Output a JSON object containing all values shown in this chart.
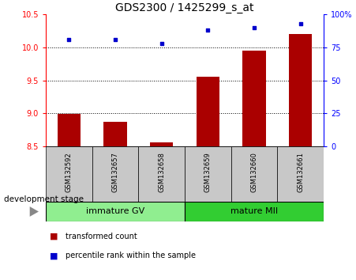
{
  "title": "GDS2300 / 1425299_s_at",
  "samples": [
    "GSM132592",
    "GSM132657",
    "GSM132658",
    "GSM132659",
    "GSM132660",
    "GSM132661"
  ],
  "bar_values": [
    8.99,
    8.87,
    8.56,
    9.55,
    9.95,
    10.2
  ],
  "bar_base": 8.5,
  "blue_dots": [
    81,
    81,
    78,
    88,
    90,
    93
  ],
  "ylim_left": [
    8.5,
    10.5
  ],
  "ylim_right": [
    0,
    100
  ],
  "yticks_left": [
    8.5,
    9.0,
    9.5,
    10.0,
    10.5
  ],
  "yticks_right": [
    0,
    25,
    50,
    75,
    100
  ],
  "ytick_labels_right": [
    "0",
    "25",
    "50",
    "75",
    "100%"
  ],
  "grid_values": [
    9.0,
    9.5,
    10.0
  ],
  "bar_color": "#AA0000",
  "dot_color": "#0000CC",
  "group1_label": "immature GV",
  "group2_label": "mature MII",
  "group1_color": "#90EE90",
  "group2_color": "#32CD32",
  "xticklabel_area_color": "#C8C8C8",
  "legend_bar_label": "transformed count",
  "legend_dot_label": "percentile rank within the sample",
  "dev_stage_label": "development stage",
  "title_fontsize": 10,
  "tick_fontsize": 7,
  "sample_fontsize": 6,
  "group_fontsize": 8,
  "legend_fontsize": 7,
  "dev_stage_fontsize": 7.5
}
